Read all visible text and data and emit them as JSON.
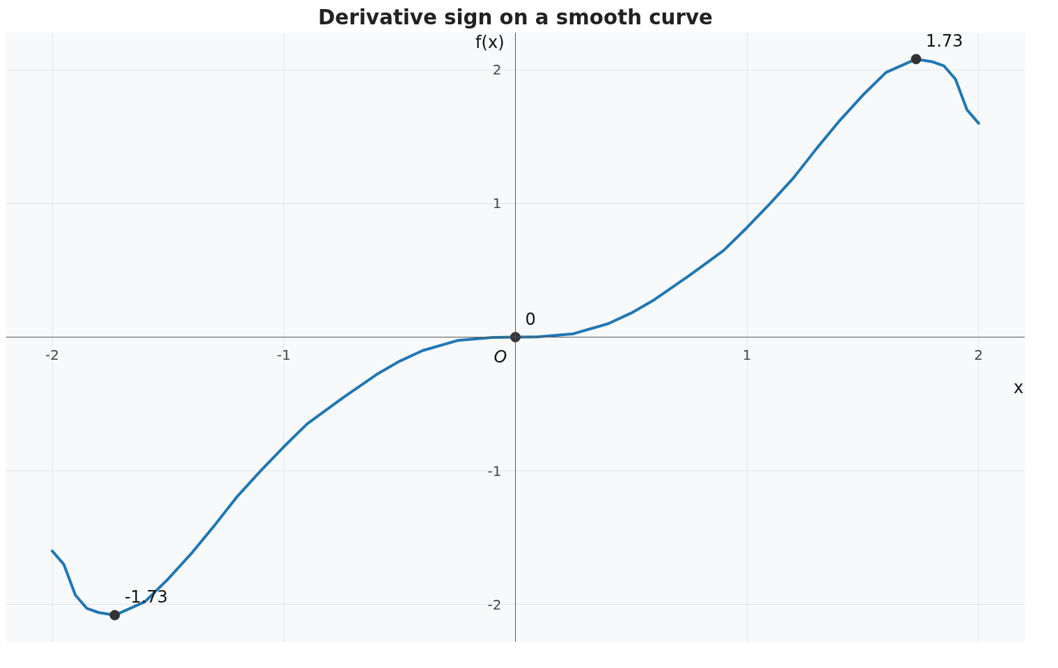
{
  "chart_data": {
    "type": "line",
    "title": "Derivative sign on a smooth curve",
    "xlabel": "x",
    "ylabel": "f(x)",
    "xlim": [
      -2.2,
      2.2
    ],
    "ylim": [
      -2.28,
      2.28
    ],
    "xticks": [
      -2,
      -1,
      1,
      2
    ],
    "yticks": [
      -2,
      -1,
      1,
      2
    ],
    "grid": true,
    "annotations": [
      {
        "text": "-1.73",
        "x": -1.73,
        "y": -2.08
      },
      {
        "text": "0",
        "x": 0,
        "y": 0
      },
      {
        "text": "1.73",
        "x": 1.73,
        "y": 2.08
      },
      {
        "text": "O",
        "x": 0,
        "y": 0
      }
    ],
    "series": [
      {
        "color": "#1f77b4",
        "x": [
          -2,
          -1.95,
          -1.9,
          -1.85,
          -1.8,
          -1.73,
          -1.6,
          -1.5,
          -1.4,
          -1.3,
          -1.2,
          -1.1,
          -1,
          -0.9,
          -0.75,
          -0.6,
          -0.5,
          -0.4,
          -0.25,
          -0.1,
          0,
          0.1,
          0.25,
          0.4,
          0.5,
          0.6,
          0.75,
          0.9,
          1,
          1.1,
          1.2,
          1.3,
          1.4,
          1.5,
          1.6,
          1.73,
          1.8,
          1.85,
          1.9,
          1.95,
          2
        ],
        "values": [
          -1.6,
          -1.7,
          -1.93,
          -2.03,
          -2.06,
          -2.08,
          -1.98,
          -1.81,
          -1.62,
          -1.41,
          -1.19,
          -1.0,
          -0.82,
          -0.65,
          -0.46,
          -0.28,
          -0.18,
          -0.1,
          -0.025,
          -0.002,
          0,
          0.002,
          0.025,
          0.1,
          0.18,
          0.28,
          0.46,
          0.65,
          0.82,
          1.0,
          1.19,
          1.41,
          1.62,
          1.81,
          1.98,
          2.08,
          2.06,
          2.03,
          1.93,
          1.7,
          1.6
        ]
      },
      {
        "type": "scatter",
        "color": "#333333",
        "marker": "circle",
        "x": [
          -1.73,
          0,
          1.73
        ],
        "values": [
          -2.08,
          0,
          2.08
        ]
      }
    ]
  }
}
